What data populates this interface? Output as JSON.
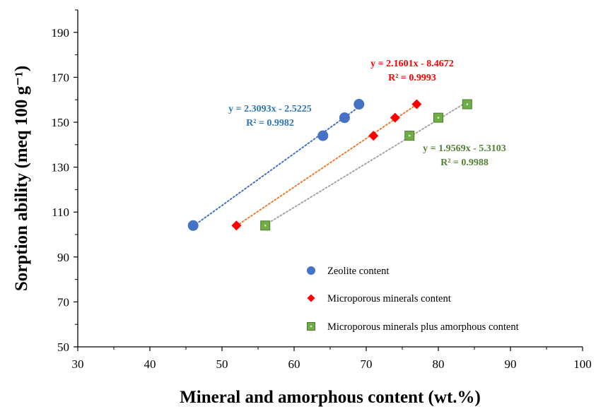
{
  "chart_data": {
    "type": "scatter",
    "xlabel": "Mineral and amorphous content (wt.%)",
    "ylabel": "Sorption ability (meq 100 g⁻¹)",
    "xlim": [
      30,
      100
    ],
    "ylim": [
      50,
      200
    ],
    "x_ticks": [
      30,
      40,
      50,
      60,
      70,
      80,
      90,
      100
    ],
    "y_ticks": [
      50,
      70,
      90,
      110,
      130,
      150,
      170,
      190
    ],
    "grid": false,
    "legend_position": "bottom-right",
    "series": [
      {
        "name": "Zeolite content",
        "marker": "circle",
        "color": "#4472C4",
        "trendline_color": "#4472C4",
        "x": [
          46,
          64,
          67,
          69
        ],
        "y": [
          104,
          144,
          152,
          158
        ],
        "trendline": {
          "slope": 2.3093,
          "intercept": -2.5225,
          "x_range": [
            46,
            69
          ]
        },
        "equation": "y = 2.3093x - 2.5225",
        "r2": "R² = 0.9982",
        "label_color": "#2E75B6"
      },
      {
        "name": "Microporous minerals content",
        "marker": "diamond",
        "color": "#FF0000",
        "trendline_color": "#ED7D31",
        "x": [
          52,
          71,
          74,
          77
        ],
        "y": [
          104,
          144,
          152,
          158
        ],
        "trendline": {
          "slope": 2.1601,
          "intercept": -8.4672,
          "x_range": [
            52,
            77
          ]
        },
        "equation": "y = 2.1601x - 8.4672",
        "r2": "R² = 0.9993",
        "label_color": "#FF0000"
      },
      {
        "name": "Microporous minerals plus amorphous content",
        "marker": "square",
        "color": "#70AD47",
        "trendline_color": "#A5A5A5",
        "x": [
          56,
          76,
          80,
          84
        ],
        "y": [
          104,
          144,
          152,
          158
        ],
        "trendline": {
          "slope": 1.9569,
          "intercept": -5.3103,
          "x_range": [
            56,
            84
          ]
        },
        "equation": "y = 1.9569x - 5.3103",
        "r2": "R² = 0.9988",
        "label_color": "#548235"
      }
    ]
  }
}
